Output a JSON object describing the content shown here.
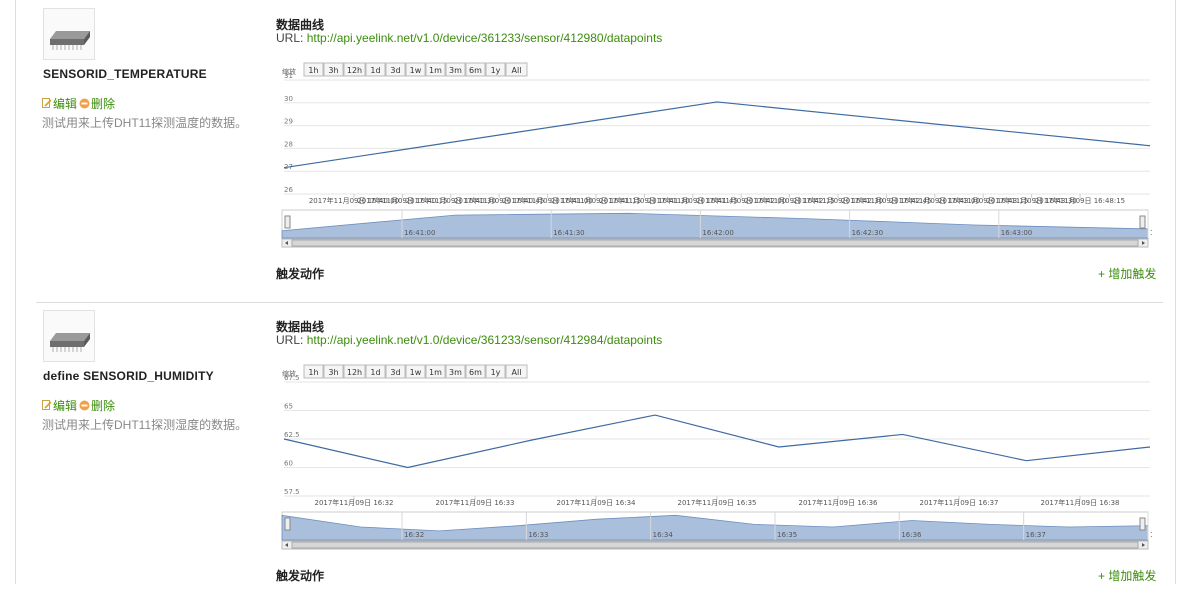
{
  "sensors": [
    {
      "name": "SENSORID_TEMPERATURE",
      "edit_label": "编辑",
      "delete_label": "删除",
      "description": "测试用来上传DHT11探测温度的数据。",
      "chart_title": "数据曲线",
      "url_label": "URL: ",
      "url": "http://api.yeelink.net/v1.0/device/361233/sensor/412980/datapoints",
      "trigger_title": "触发动作",
      "add_trigger_label": "+ 增加触发",
      "zoom_label": "缩放",
      "zoom_buttons": [
        "1h",
        "3h",
        "12h",
        "1d",
        "3d",
        "1w",
        "1m",
        "3m",
        "6m",
        "1y",
        "All"
      ],
      "chart_data": {
        "type": "line",
        "y_ticks": [
          "31",
          "30",
          "29",
          "28",
          "27",
          "26"
        ],
        "ylim": [
          25.8,
          31
        ],
        "x_tick_labels": [
          "2017年11月09日 16:40:00",
          "2017年11月09日 16:40:15",
          "2017年11月09日 16:40:30",
          "2017年11月09日 16:40:45",
          "2017年11月09日 16:41:00",
          "2017年11月09日 16:41:15",
          "2017年11月09日 16:41:30",
          "2017年11月09日 16:41:45",
          "2017年11月09日 16:42:00",
          "2017年11月09日 16:42:15",
          "2017年11月09日 16:42:30",
          "2017年11月09日 16:42:45",
          "2017年11月09日 16:43:00",
          "2017年11月09日 16:43:15",
          "2017年11月09日 16:43:30",
          "2017年11月09日 16:48:15"
        ],
        "values": [
          27,
          30,
          28
        ],
        "navigator_labels": [
          "16:41:00",
          "16:41:30",
          "16:42:00",
          "16:42:30",
          "16:43:00",
          "16:43:30"
        ],
        "navigator_values": [
          0.28,
          0.88,
          0.95,
          0.75,
          0.5,
          0.35
        ],
        "grid": true,
        "line_color": "#3d6aa1",
        "fill_color": "#a9bfdc"
      }
    },
    {
      "name": "define SENSORID_HUMIDITY",
      "edit_label": "编辑",
      "delete_label": "删除",
      "description": "测试用来上传DHT11探测湿度的数据。",
      "chart_title": "数据曲线",
      "url_label": "URL: ",
      "url": "http://api.yeelink.net/v1.0/device/361233/sensor/412984/datapoints",
      "trigger_title": "触发动作",
      "add_trigger_label": "+ 增加触发",
      "zoom_label": "缩放",
      "zoom_buttons": [
        "1h",
        "3h",
        "12h",
        "1d",
        "3d",
        "1w",
        "1m",
        "3m",
        "6m",
        "1y",
        "All"
      ],
      "chart_data": {
        "type": "line",
        "y_ticks": [
          "67.5",
          "65",
          "62.5",
          "60",
          "57.5"
        ],
        "ylim": [
          57.5,
          67.5
        ],
        "x_tick_labels": [
          "2017年11月09日 16:32",
          "2017年11月09日 16:33",
          "2017年11月09日 16:34",
          "2017年11月09日 16:35",
          "2017年11月09日 16:36",
          "2017年11月09日 16:37",
          "2017年11月09日 16:38"
        ],
        "values": [
          62.5,
          60,
          62.4,
          64.6,
          61.8,
          62.9,
          60.6,
          61.8
        ],
        "navigator_labels": [
          "16:32",
          "16:33",
          "16:34",
          "16:35",
          "16:36",
          "16:37",
          "16:38"
        ],
        "navigator_values": [
          0.95,
          0.5,
          0.35,
          0.55,
          0.8,
          0.95,
          0.6,
          0.5,
          0.75,
          0.6,
          0.5,
          0.55
        ],
        "grid": true,
        "line_color": "#3d6aa1",
        "fill_color": "#a9bfdc"
      }
    }
  ]
}
